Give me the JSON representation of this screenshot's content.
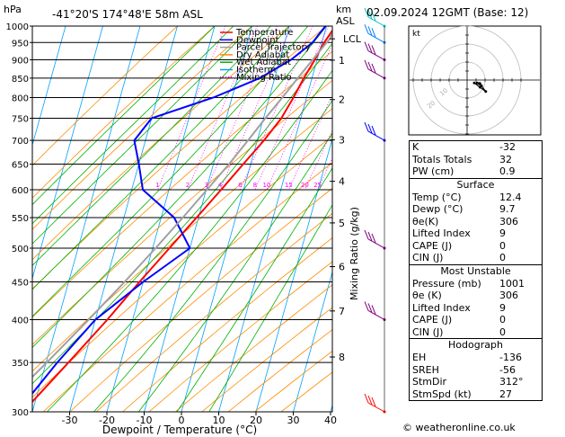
{
  "header": {
    "location": "-41°20'S  174°48'E  58m  ASL",
    "left_unit": "hPa",
    "right_unit_top": "km",
    "right_unit_bottom": "ASL",
    "datetime": "02.09.2024  12GMT  (Base: 12)"
  },
  "legend": [
    {
      "label": "Temperature",
      "color": "#ff0000"
    },
    {
      "label": "Dewpoint",
      "color": "#0000ff"
    },
    {
      "label": "Parcel Trajectory",
      "color": "#a0a0a0"
    },
    {
      "label": "Dry Adiabat",
      "color": "#ff8c00"
    },
    {
      "label": "Wet Adiabat",
      "color": "#00b000"
    },
    {
      "label": "Isotherm",
      "color": "#00a0ff"
    },
    {
      "label": "Mixing Ratio",
      "color": "#ff00ff"
    }
  ],
  "chart_data": {
    "type": "line",
    "title": "-41°20'S  174°48'E  58m  ASL",
    "xlabel": "Dewpoint / Temperature (°C)",
    "ylabel": "hPa",
    "right_label": "Mixing Ratio (g/kg)",
    "pressure_ticks": [
      300,
      350,
      400,
      450,
      500,
      550,
      600,
      650,
      700,
      750,
      800,
      850,
      900,
      950,
      1000
    ],
    "temperature_ticks": [
      -30,
      -20,
      -10,
      0,
      10,
      20,
      30,
      40
    ],
    "xlim": [
      -40,
      40
    ],
    "ylim": [
      1000,
      300
    ],
    "height_km_labels": [
      {
        "km": "8",
        "p": 356
      },
      {
        "km": "7",
        "p": 411
      },
      {
        "km": "6",
        "p": 472
      },
      {
        "km": "5",
        "p": 541
      },
      {
        "km": "4",
        "p": 616
      },
      {
        "km": "3",
        "p": 701
      },
      {
        "km": "2",
        "p": 795
      },
      {
        "km": "1",
        "p": 899
      },
      {
        "km": "LCL",
        "p": 961
      }
    ],
    "mixing_ratio_labels": [
      "1",
      "2",
      "3",
      "4",
      "6",
      "8",
      "10",
      "15",
      "20",
      "25"
    ],
    "mixing_ratio_values": [
      1,
      2,
      3,
      4,
      6,
      8,
      10,
      15,
      20,
      25
    ],
    "series": [
      {
        "name": "Temperature",
        "color": "#ff0000",
        "points": [
          [
            1000,
            12.4
          ],
          [
            950,
            10.6
          ],
          [
            900,
            9.4
          ],
          [
            850,
            7.8
          ],
          [
            800,
            6.5
          ],
          [
            750,
            4.8
          ],
          [
            700,
            1.8
          ],
          [
            650,
            -2.0
          ],
          [
            600,
            -6.0
          ],
          [
            550,
            -10.5
          ],
          [
            500,
            -15.5
          ],
          [
            450,
            -21.0
          ],
          [
            400,
            -26.8
          ],
          [
            350,
            -34.0
          ],
          [
            300,
            -42.5
          ]
        ]
      },
      {
        "name": "Dewpoint",
        "color": "#0000ff",
        "points": [
          [
            1000,
            9.7
          ],
          [
            950,
            7.5
          ],
          [
            900,
            3.0
          ],
          [
            850,
            -4.0
          ],
          [
            800,
            -15.0
          ],
          [
            750,
            -30.0
          ],
          [
            700,
            -33.0
          ],
          [
            650,
            -30.0
          ],
          [
            600,
            -27.0
          ],
          [
            550,
            -16.5
          ],
          [
            500,
            -10.0
          ],
          [
            450,
            -20.0
          ],
          [
            400,
            -30.0
          ],
          [
            350,
            -37.0
          ],
          [
            300,
            -44.0
          ]
        ]
      },
      {
        "name": "Parcel Trajectory",
        "color": "#a0a0a0",
        "points": [
          [
            1000,
            12.4
          ],
          [
            961,
            11.8
          ],
          [
            900,
            8.8
          ],
          [
            850,
            6.2
          ],
          [
            800,
            3.5
          ],
          [
            750,
            0.5
          ],
          [
            700,
            -2.5
          ],
          [
            650,
            -5.8
          ],
          [
            600,
            -9.8
          ],
          [
            550,
            -14.2
          ],
          [
            500,
            -19.2
          ],
          [
            450,
            -25.0
          ],
          [
            400,
            -31.8
          ],
          [
            350,
            -39.8
          ],
          [
            300,
            -49.5
          ]
        ]
      }
    ]
  },
  "wind_barbs": [
    {
      "p": 300,
      "color": "#ff0000"
    },
    {
      "p": 400,
      "color": "#800080"
    },
    {
      "p": 500,
      "color": "#800080"
    },
    {
      "p": 700,
      "color": "#0000ff"
    },
    {
      "p": 850,
      "color": "#800080"
    },
    {
      "p": 900,
      "color": "#800080"
    },
    {
      "p": 950,
      "color": "#0080ff"
    },
    {
      "p": 1000,
      "color": "#00c0c0"
    }
  ],
  "hodograph": {
    "label": "kt",
    "ring_labels": [
      "10",
      "20"
    ],
    "points_kt": [
      [
        5,
        -2
      ],
      [
        9,
        -5
      ],
      [
        13,
        -8
      ],
      [
        10,
        -4
      ],
      [
        7,
        -2
      ]
    ]
  },
  "indices": [
    {
      "label": "K",
      "value": "-32"
    },
    {
      "label": "Totals Totals",
      "value": "32"
    },
    {
      "label": "PW (cm)",
      "value": "0.9"
    }
  ],
  "surface": {
    "title": "Surface",
    "rows": [
      {
        "label": "Temp (°C)",
        "value": "12.4"
      },
      {
        "label": "Dewp (°C)",
        "value": "9.7"
      },
      {
        "label": "θe(K)",
        "value": "306"
      },
      {
        "label": "Lifted Index",
        "value": "9"
      },
      {
        "label": "CAPE (J)",
        "value": "0"
      },
      {
        "label": "CIN (J)",
        "value": "0"
      }
    ]
  },
  "most_unstable": {
    "title": "Most Unstable",
    "rows": [
      {
        "label": "Pressure (mb)",
        "value": "1001"
      },
      {
        "label": "θe (K)",
        "value": "306"
      },
      {
        "label": "Lifted Index",
        "value": "9"
      },
      {
        "label": "CAPE (J)",
        "value": "0"
      },
      {
        "label": "CIN (J)",
        "value": "0"
      }
    ]
  },
  "hodograph_table": {
    "title": "Hodograph",
    "rows": [
      {
        "label": "EH",
        "value": "-136"
      },
      {
        "label": "SREH",
        "value": "-56"
      },
      {
        "label": "StmDir",
        "value": "312°"
      },
      {
        "label": "StmSpd (kt)",
        "value": "27"
      }
    ]
  },
  "credit": "© weatheronline.co.uk"
}
